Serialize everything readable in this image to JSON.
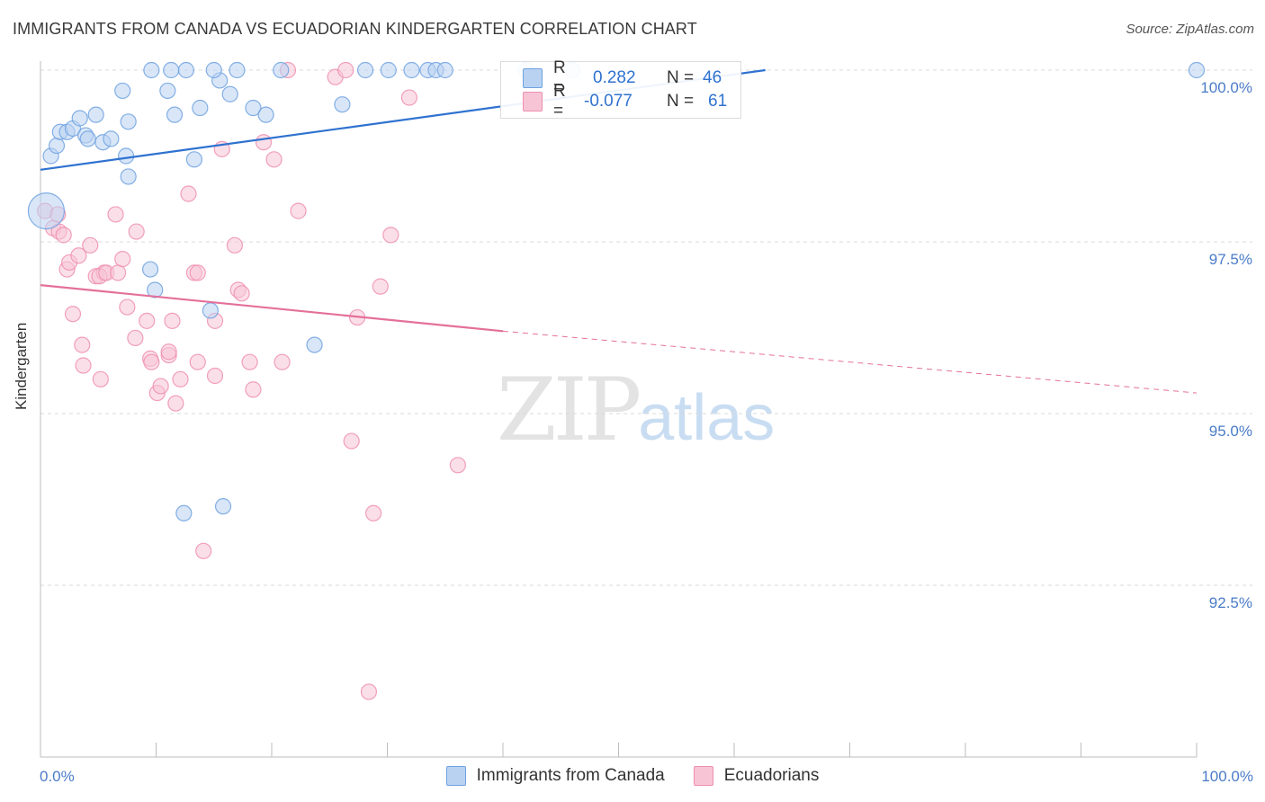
{
  "title": "IMMIGRANTS FROM CANADA VS ECUADORIAN KINDERGARTEN CORRELATION CHART",
  "source": "Source: ZipAtlas.com",
  "watermark": {
    "zip": "ZIP",
    "atlas": "atlas"
  },
  "colors": {
    "blue": "#6fa2e0",
    "blue_fill": "#b9d2f2",
    "blue_line": "#2f72d0",
    "pink": "#ee8fb0",
    "pink_fill": "#f7c4d6",
    "pink_line": "#e4709a",
    "tick_label": "#4a7cc7"
  },
  "legend": {
    "rows": [
      {
        "r_label": "R =",
        "r_value": "0.282",
        "n_label": "N =",
        "n_value": "46"
      },
      {
        "r_label": "R =",
        "r_value": "-0.077",
        "n_label": "N =",
        "n_value": "61"
      }
    ]
  },
  "chart_data": {
    "type": "scatter",
    "title": "IMMIGRANTS FROM CANADA VS ECUADORIAN KINDERGARTEN CORRELATION CHART",
    "xlabel": "",
    "ylabel": "Kindergarten",
    "xlim": [
      0,
      100
    ],
    "ylim": [
      90.2,
      100.35
    ],
    "x_tick_labels": [
      "0.0%",
      "100.0%"
    ],
    "y_ticks": [
      92.5,
      95.0,
      97.5,
      100.0
    ],
    "y_tick_labels": [
      "92.5%",
      "95.0%",
      "97.5%",
      "100.0%"
    ],
    "grid": true,
    "legend_position": "top-center",
    "series": [
      {
        "name": "Immigrants from Canada",
        "color": "blue",
        "points": [
          [
            0.5,
            97.95
          ],
          [
            0.9,
            98.75
          ],
          [
            1.4,
            98.9
          ],
          [
            1.7,
            99.1
          ],
          [
            2.3,
            99.1
          ],
          [
            2.8,
            99.15
          ],
          [
            3.4,
            99.3
          ],
          [
            3.9,
            99.05
          ],
          [
            4.1,
            99.0
          ],
          [
            4.8,
            99.35
          ],
          [
            5.4,
            98.95
          ],
          [
            6.1,
            99.0
          ],
          [
            7.1,
            99.7
          ],
          [
            7.4,
            98.75
          ],
          [
            7.6,
            99.25
          ],
          [
            7.6,
            98.45
          ],
          [
            9.5,
            97.1
          ],
          [
            9.9,
            96.8
          ],
          [
            9.6,
            100.0
          ],
          [
            11.0,
            99.7
          ],
          [
            11.3,
            100.0
          ],
          [
            11.6,
            99.35
          ],
          [
            12.6,
            100.0
          ],
          [
            13.3,
            98.7
          ],
          [
            13.8,
            99.45
          ],
          [
            14.7,
            96.5
          ],
          [
            15.5,
            99.85
          ],
          [
            15.0,
            100.0
          ],
          [
            16.4,
            99.65
          ],
          [
            17.0,
            100.0
          ],
          [
            18.4,
            99.45
          ],
          [
            19.5,
            99.35
          ],
          [
            20.8,
            100.0
          ],
          [
            23.7,
            96.0
          ],
          [
            26.1,
            99.5
          ],
          [
            28.1,
            100.0
          ],
          [
            30.1,
            100.0
          ],
          [
            32.1,
            100.0
          ],
          [
            33.5,
            100.0
          ],
          [
            34.2,
            100.0
          ],
          [
            35.0,
            100.0
          ],
          [
            12.4,
            93.55
          ],
          [
            15.8,
            93.65
          ],
          [
            100.0,
            100.0
          ],
          [
            42.0,
            100.0
          ],
          [
            46.0,
            100.0
          ]
        ],
        "trend": {
          "x": [
            0,
            62.7
          ],
          "y": [
            98.55,
            100.0
          ]
        }
      },
      {
        "name": "Ecuadorians",
        "color": "pink",
        "points": [
          [
            0.4,
            97.95
          ],
          [
            1.1,
            97.7
          ],
          [
            1.5,
            97.9
          ],
          [
            1.6,
            97.65
          ],
          [
            2.3,
            97.1
          ],
          [
            2.5,
            97.2
          ],
          [
            2.8,
            96.45
          ],
          [
            3.3,
            97.3
          ],
          [
            3.6,
            96.0
          ],
          [
            3.7,
            95.7
          ],
          [
            4.3,
            97.45
          ],
          [
            4.8,
            97.0
          ],
          [
            5.5,
            97.05
          ],
          [
            5.2,
            95.5
          ],
          [
            5.1,
            97.0
          ],
          [
            5.7,
            97.05
          ],
          [
            6.5,
            97.9
          ],
          [
            6.7,
            97.05
          ],
          [
            7.1,
            97.25
          ],
          [
            7.5,
            96.55
          ],
          [
            8.2,
            96.1
          ],
          [
            8.3,
            97.65
          ],
          [
            9.2,
            96.35
          ],
          [
            9.5,
            95.8
          ],
          [
            9.6,
            95.75
          ],
          [
            10.1,
            95.3
          ],
          [
            10.4,
            95.4
          ],
          [
            11.1,
            95.85
          ],
          [
            11.1,
            95.9
          ],
          [
            11.4,
            96.35
          ],
          [
            11.7,
            95.15
          ],
          [
            12.1,
            95.5
          ],
          [
            12.8,
            98.2
          ],
          [
            13.3,
            97.05
          ],
          [
            13.6,
            97.05
          ],
          [
            13.6,
            95.75
          ],
          [
            14.1,
            93.0
          ],
          [
            15.1,
            96.35
          ],
          [
            15.1,
            95.55
          ],
          [
            15.7,
            98.85
          ],
          [
            16.8,
            97.45
          ],
          [
            17.1,
            96.8
          ],
          [
            17.4,
            96.75
          ],
          [
            18.1,
            95.75
          ],
          [
            18.4,
            95.35
          ],
          [
            19.3,
            98.95
          ],
          [
            20.2,
            98.7
          ],
          [
            20.9,
            95.75
          ],
          [
            21.4,
            100.0
          ],
          [
            22.3,
            97.95
          ],
          [
            25.5,
            99.9
          ],
          [
            26.4,
            100.0
          ],
          [
            26.9,
            94.6
          ],
          [
            27.4,
            96.4
          ],
          [
            28.4,
            90.95
          ],
          [
            28.8,
            93.55
          ],
          [
            29.4,
            96.85
          ],
          [
            30.3,
            97.6
          ],
          [
            31.9,
            99.6
          ],
          [
            36.1,
            94.25
          ],
          [
            2.0,
            97.6
          ]
        ],
        "trend": {
          "x": [
            0,
            40.0
          ],
          "y": [
            96.87,
            96.2
          ]
        },
        "trend_dashed": {
          "x": [
            40.0,
            100.0
          ],
          "y": [
            96.2,
            95.3
          ]
        }
      }
    ]
  },
  "bottom_legend": [
    "Immigrants from Canada",
    "Ecuadorians"
  ]
}
